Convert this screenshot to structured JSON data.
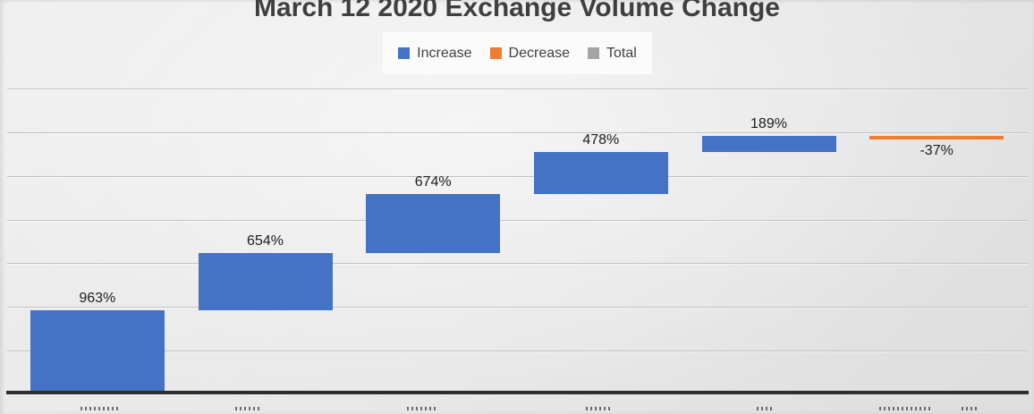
{
  "title": {
    "text": "March 12 2020 Exchange Volume Change"
  },
  "legend": {
    "items": [
      {
        "label": "Increase",
        "color": "#4472C4"
      },
      {
        "label": "Decrease",
        "color": "#ED7D31"
      },
      {
        "label": "Total",
        "color": "#A5A5A5"
      }
    ]
  },
  "chart_data": {
    "type": "bar",
    "subtype": "waterfall",
    "title": "March 12 2020 Exchange Volume Change",
    "categories": [
      "",
      "",
      "",
      "",
      "",
      ""
    ],
    "values": [
      963,
      654,
      674,
      478,
      189,
      -37
    ],
    "data_labels": [
      "963%",
      "654%",
      "674%",
      "478%",
      "189%",
      "-37%"
    ],
    "segment_types": [
      "increase",
      "increase",
      "increase",
      "increase",
      "increase",
      "decrease"
    ],
    "cumulative_end": [
      963,
      1617,
      2291,
      2769,
      2958,
      2921
    ],
    "ylim": [
      0,
      3500
    ],
    "gridline_step": 500,
    "grid": true,
    "y_tick_labels_visible": false,
    "legend_entries": [
      "Increase",
      "Decrease",
      "Total"
    ],
    "legend_position": "top-center",
    "colors": {
      "increase": "#4472C4",
      "decrease": "#ED7D31",
      "total": "#A5A5A5",
      "axis_line": "#2e2e2e",
      "gridline": "#c2c2c2",
      "title_text": "#3f3f3f"
    }
  }
}
